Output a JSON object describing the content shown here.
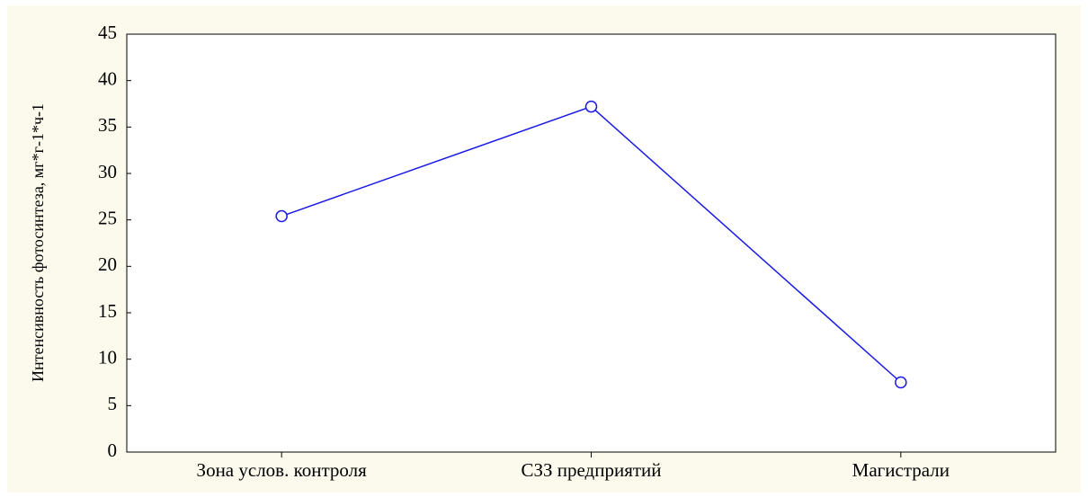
{
  "chart_data": {
    "type": "line",
    "y_label": "Интенсивность фотосинтеза, мг*г-1*ч-1",
    "categories": [
      "Зона услов. контроля",
      "СЗЗ предприятий",
      "Магистрали"
    ],
    "series": [
      {
        "color": "#1a1ae6",
        "values": [
          25.4,
          37.2,
          7.5
        ]
      }
    ],
    "ylim": [
      0,
      45
    ],
    "yticks": [
      0,
      5,
      10,
      15,
      20,
      25,
      30,
      35,
      40,
      45
    ]
  }
}
